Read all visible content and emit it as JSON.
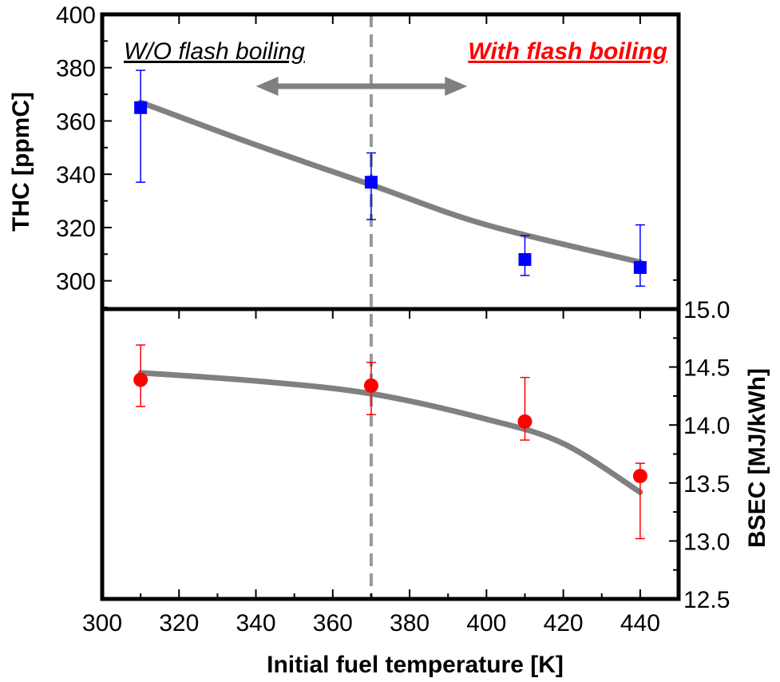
{
  "chart_data": [
    {
      "type": "scatter",
      "panel": "top",
      "xlabel": "Initial fuel temperature [K]",
      "ylabel": "THC [ppmC]",
      "xlim": [
        300,
        450
      ],
      "ylim": [
        290,
        400
      ],
      "x_ticks": [
        "300",
        "320",
        "340",
        "360",
        "380",
        "400",
        "420",
        "440"
      ],
      "y_ticks": [
        "300",
        "320",
        "340",
        "360",
        "380",
        "400"
      ],
      "marker": "square",
      "color": "#0000ff",
      "points": [
        {
          "x": 310,
          "y": 365,
          "err_low": 337,
          "err_high": 379
        },
        {
          "x": 370,
          "y": 337,
          "err_low": 323,
          "err_high": 348
        },
        {
          "x": 410,
          "y": 308,
          "err_low": 302,
          "err_high": 317
        },
        {
          "x": 440,
          "y": 305,
          "err_low": 298,
          "err_high": 321
        }
      ],
      "trend": {
        "color": "#808080",
        "points": [
          [
            310,
            367
          ],
          [
            340,
            351
          ],
          [
            370,
            336
          ],
          [
            400,
            321
          ],
          [
            440,
            307
          ]
        ]
      }
    },
    {
      "type": "scatter",
      "panel": "bottom",
      "ylabel": "BSEC [MJ/kWh]",
      "xlim": [
        300,
        450
      ],
      "ylim": [
        12.5,
        15.0
      ],
      "y_ticks": [
        "12.5",
        "13.0",
        "13.5",
        "14.0",
        "14.5",
        "15.0"
      ],
      "y_axis_side": "right",
      "marker": "circle",
      "color": "#ff0000",
      "points": [
        {
          "x": 310,
          "y": 14.39,
          "err_low": 14.16,
          "err_high": 14.69
        },
        {
          "x": 370,
          "y": 14.34,
          "err_low": 14.09,
          "err_high": 14.54
        },
        {
          "x": 410,
          "y": 14.03,
          "err_low": 13.87,
          "err_high": 14.41
        },
        {
          "x": 440,
          "y": 13.56,
          "err_low": 13.02,
          "err_high": 13.67
        }
      ],
      "trend": {
        "color": "#808080",
        "points": [
          [
            310,
            14.45
          ],
          [
            340,
            14.38
          ],
          [
            370,
            14.27
          ],
          [
            400,
            14.05
          ],
          [
            420,
            13.84
          ],
          [
            440,
            13.42
          ]
        ]
      }
    }
  ],
  "vertical_marker": {
    "x": 370,
    "color": "#999999",
    "style": "dashed"
  },
  "annotations": {
    "left_label": "W/O flash boiling",
    "left_color": "#000000",
    "right_label": "With flash boiling",
    "right_color": "#ff0000",
    "arrow_color": "#808080",
    "arrow_from": 340,
    "arrow_to": 395
  }
}
